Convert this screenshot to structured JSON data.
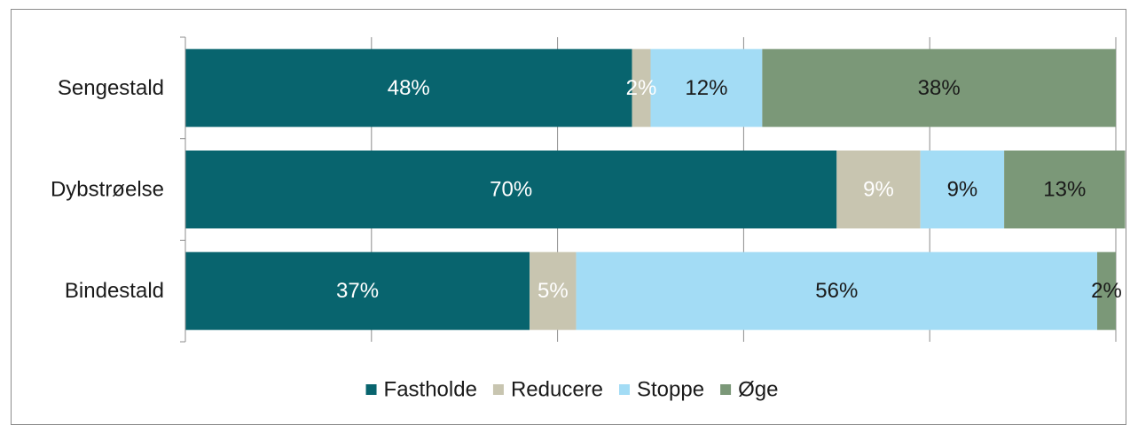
{
  "chart_data": {
    "type": "bar",
    "orientation": "horizontal",
    "stacked": true,
    "percent_stacked": true,
    "categories": [
      "Sengestald",
      "Dybstrøelse",
      "Bindestald"
    ],
    "series": [
      {
        "name": "Fastholde",
        "values": [
          48,
          70,
          37
        ],
        "labels": [
          "48%",
          "70%",
          "37%"
        ],
        "color": "#08646e",
        "label_color": "#ffffff"
      },
      {
        "name": "Reducere",
        "values": [
          2,
          9,
          5
        ],
        "labels": [
          "2%",
          "9%",
          "5%"
        ],
        "color": "#c8c5b0",
        "label_color": "#ffffff"
      },
      {
        "name": "Stoppe",
        "values": [
          12,
          9,
          56
        ],
        "labels": [
          "12%",
          "9%",
          "56%"
        ],
        "color": "#a3dcf5",
        "label_color": "#1a1a1a"
      },
      {
        "name": "Øge",
        "values": [
          38,
          13,
          2
        ],
        "labels": [
          "38%",
          "13%",
          "2%"
        ],
        "color": "#7b9878",
        "label_color": "#1a1a1a"
      }
    ],
    "xlim": [
      0,
      100
    ],
    "x_gridlines": [
      0,
      20,
      40,
      60,
      80,
      100
    ],
    "legend_position": "bottom",
    "grid": true
  }
}
